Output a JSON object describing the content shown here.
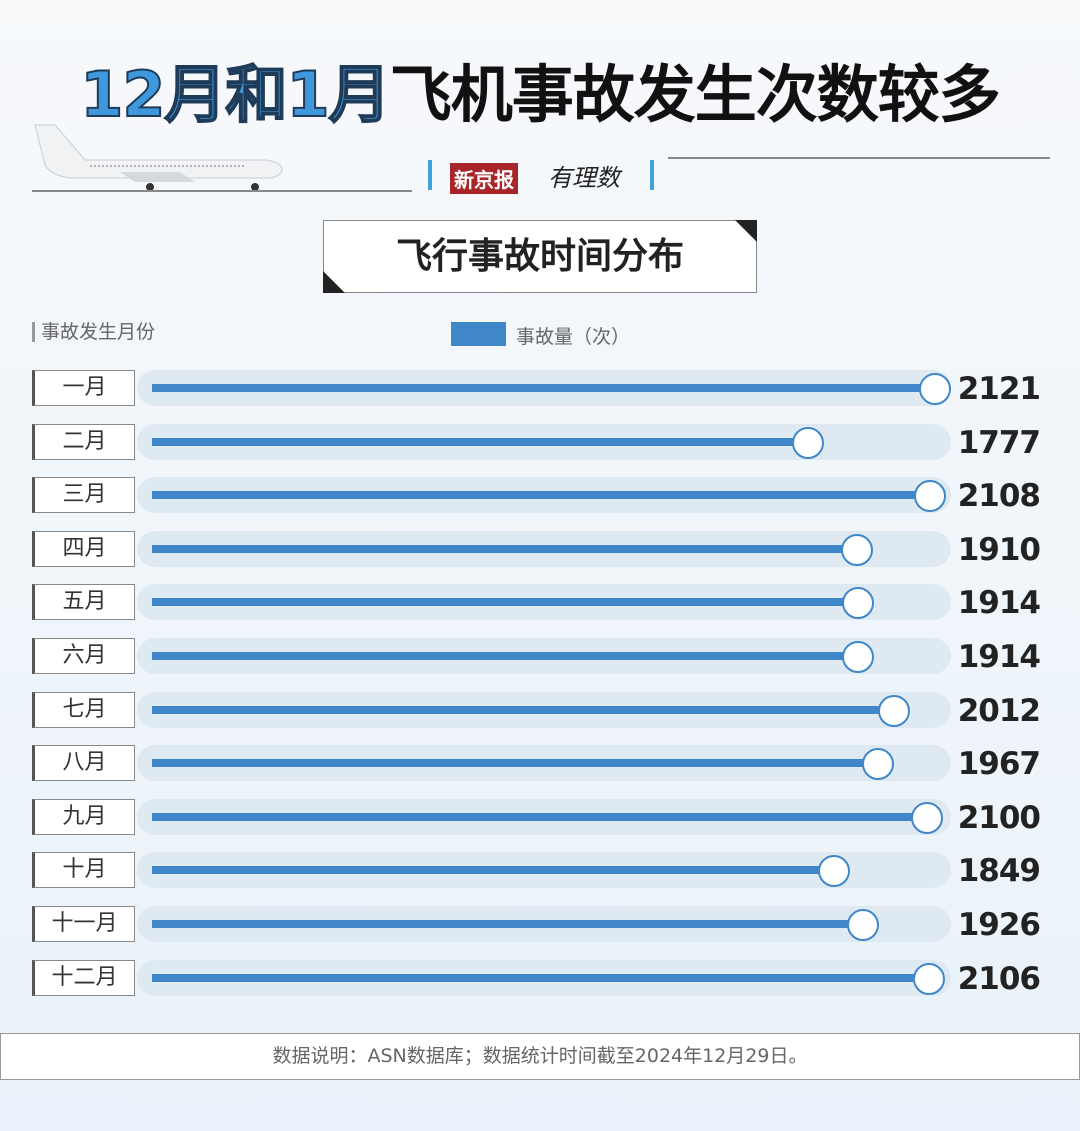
{
  "title": {
    "highlight": "12月和1月",
    "rest": "飞机事故发生次数较多"
  },
  "logo": {
    "brand": "新京报",
    "column": "有理数"
  },
  "chart_data": {
    "type": "bar",
    "orientation": "horizontal",
    "title": "飞行事故时间分布",
    "ylabel": "事故发生月份",
    "legend": [
      {
        "name": "事故量（次）",
        "color": "#3f87c9"
      }
    ],
    "categories": [
      "一月",
      "二月",
      "三月",
      "四月",
      "五月",
      "六月",
      "七月",
      "八月",
      "九月",
      "十月",
      "十一月",
      "十二月"
    ],
    "series": [
      {
        "name": "事故量（次）",
        "values": [
          2121,
          1777,
          2108,
          1910,
          1914,
          1914,
          2012,
          1967,
          2100,
          1849,
          1926,
          2106
        ]
      }
    ],
    "xlim": [
      0,
      2200
    ],
    "grid": false
  },
  "footer": "数据说明：ASN数据库；数据统计时间截至2024年12月29日。"
}
